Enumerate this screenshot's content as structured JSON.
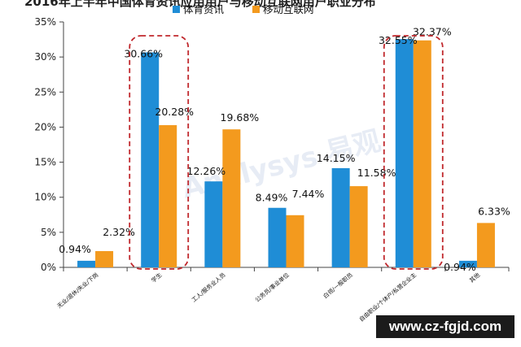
{
  "page": {
    "title": "2016年上半年中国体育资讯应用用户与移动互联网用户职业分布",
    "watermark_text": "www.cz-fgjd.com",
    "background_watermark": "Analysys 易观"
  },
  "chart_data": {
    "type": "bar",
    "title": "",
    "xlabel": "",
    "ylabel": "",
    "ylim": [
      0,
      35
    ],
    "yticks": [
      "0%",
      "5%",
      "10%",
      "15%",
      "20%",
      "25%",
      "30%",
      "35%"
    ],
    "grid": false,
    "legend_position": "top-center",
    "categories": [
      "无业/退休/失业/下岗",
      "学生",
      "工人/服务业人员",
      "公务员/事业单位",
      "白领/一般职员",
      "自由职业/个体户/私营企业主",
      "其他"
    ],
    "series": [
      {
        "name": "体育资讯",
        "color": "#1f8dd6",
        "values": [
          0.94,
          30.66,
          12.26,
          8.49,
          14.15,
          32.55,
          0.94
        ],
        "labels": [
          "0.94%",
          "30.66%",
          "12.26%",
          "8.49%",
          "14.15%",
          "32.55%",
          "0.94%"
        ]
      },
      {
        "name": "移动互联网",
        "color": "#f39a1e",
        "values": [
          2.32,
          20.28,
          19.68,
          7.44,
          11.58,
          32.37,
          6.33
        ],
        "labels": [
          "2.32%",
          "20.28%",
          "19.68%",
          "7.44%",
          "11.58%",
          "32.37%",
          "6.33%"
        ]
      }
    ],
    "highlighted_categories": [
      "学生",
      "自由职业/个体户/私营企业主"
    ],
    "highlight_color": "#c0282d"
  }
}
